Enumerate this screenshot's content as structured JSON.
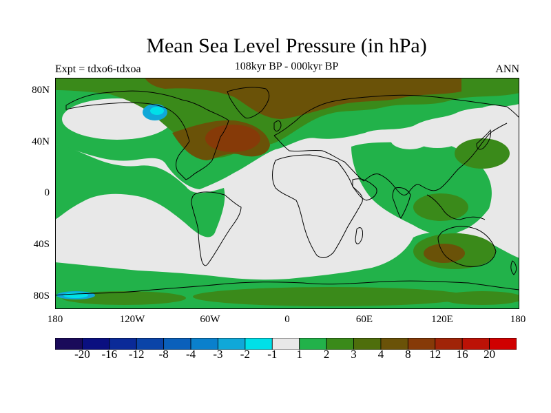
{
  "title": "Mean Sea Level Pressure (in hPa)",
  "subtitle": "108kyr BP - 000kyr BP",
  "experiment_label": "Expt = tdxo6-tdxoa",
  "season_label": "ANN",
  "longitude_labels": [
    "180",
    "120W",
    "60W",
    "0",
    "60E",
    "120E",
    "180"
  ],
  "latitude_labels": [
    "80N",
    "40N",
    "0",
    "40S",
    "80S"
  ],
  "colorbar": {
    "labels": [
      "-20",
      "-16",
      "-12",
      "-8",
      "-4",
      "-3",
      "-2",
      "-1",
      "1",
      "2",
      "3",
      "4",
      "8",
      "12",
      "16",
      "20"
    ],
    "colors": [
      "#1a0a5a",
      "#0a0f80",
      "#0a2a98",
      "#0a44a8",
      "#0a60bb",
      "#0a80cc",
      "#10a8d8",
      "#00e0e8",
      "#e8e8e8",
      "#22b24a",
      "#3a8a1a",
      "#4e6e0c",
      "#6a5208",
      "#863a08",
      "#a02408",
      "#bc1206",
      "#d00000"
    ]
  },
  "map_colors": {
    "ocean_background": "#e8e8e8",
    "positive_small": "#22b24a",
    "positive_medium": "#3a8a1a",
    "positive_large": "#6a5208",
    "positive_larger": "#863a08",
    "negative_small": "#00e0e8",
    "negative_medium": "#10a8d8"
  }
}
